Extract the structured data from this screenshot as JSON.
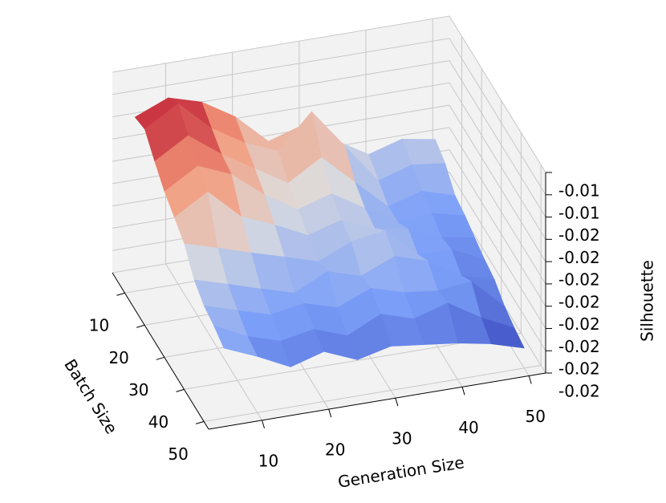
{
  "chart_data": {
    "type": "surface",
    "x_label": "Generation Size",
    "y_label": "Batch Size",
    "z_label": "Silhouette",
    "x": [
      5,
      10,
      15,
      20,
      25,
      30,
      35,
      40,
      45,
      50
    ],
    "y": [
      5,
      10,
      15,
      20,
      25,
      30,
      35,
      40,
      45,
      50
    ],
    "z": [
      [
        -0.01499,
        -0.01468,
        -0.0149,
        -0.01535,
        -0.01603,
        -0.0158,
        -0.01625,
        -0.0167,
        -0.01648,
        -0.01661
      ],
      [
        -0.0149,
        -0.01445,
        -0.01513,
        -0.01558,
        -0.01589,
        -0.01513,
        -0.01603,
        -0.01693,
        -0.0167,
        -0.01679
      ],
      [
        -0.01526,
        -0.01481,
        -0.01535,
        -0.0158,
        -0.01625,
        -0.0158,
        -0.01648,
        -0.01715,
        -0.01693,
        -0.01715
      ],
      [
        -0.01558,
        -0.01513,
        -0.01544,
        -0.01603,
        -0.01648,
        -0.01625,
        -0.0167,
        -0.01715,
        -0.01706,
        -0.01724
      ],
      [
        -0.0158,
        -0.01535,
        -0.01603,
        -0.01634,
        -0.0167,
        -0.01648,
        -0.01679,
        -0.01693,
        -0.01724,
        -0.01738
      ],
      [
        -0.01603,
        -0.01625,
        -0.01648,
        -0.0167,
        -0.01693,
        -0.01661,
        -0.01648,
        -0.01715,
        -0.01715,
        -0.01751
      ],
      [
        -0.01648,
        -0.0167,
        -0.01693,
        -0.01715,
        -0.01679,
        -0.01702,
        -0.0167,
        -0.01693,
        -0.01738,
        -0.0176
      ],
      [
        -0.0167,
        -0.01693,
        -0.01715,
        -0.01702,
        -0.01724,
        -0.01693,
        -0.01715,
        -0.01724,
        -0.01715,
        -0.01783
      ],
      [
        -0.01679,
        -0.01715,
        -0.01738,
        -0.01724,
        -0.01751,
        -0.01715,
        -0.01738,
        -0.01715,
        -0.0176,
        -0.01796
      ],
      [
        -0.01693,
        -0.01724,
        -0.0176,
        -0.01738,
        -0.01769,
        -0.01751,
        -0.0176,
        -0.01769,
        -0.01783,
        -0.01805
      ]
    ],
    "xlim": [
      2,
      52.5
    ],
    "ylim": [
      3.7,
      52.4
    ],
    "zlim": [
      -0.0185,
      -0.014
    ],
    "xticks": [
      10,
      20,
      30,
      40,
      50
    ],
    "yticks": [
      10,
      20,
      30,
      40,
      50
    ],
    "zticks": [
      {
        "value": -0.014,
        "label": "-0.01"
      },
      {
        "value": -0.0145,
        "label": "-0.01"
      },
      {
        "value": -0.015,
        "label": "-0.02"
      },
      {
        "value": -0.0155,
        "label": "-0.02"
      },
      {
        "value": -0.016,
        "label": "-0.02"
      },
      {
        "value": -0.0165,
        "label": "-0.02"
      },
      {
        "value": -0.017,
        "label": "-0.02"
      },
      {
        "value": -0.0175,
        "label": "-0.02"
      },
      {
        "value": -0.018,
        "label": "-0.02"
      },
      {
        "value": -0.0185,
        "label": "-0.02"
      }
    ],
    "colormap": "coolwarm",
    "grid": true
  }
}
